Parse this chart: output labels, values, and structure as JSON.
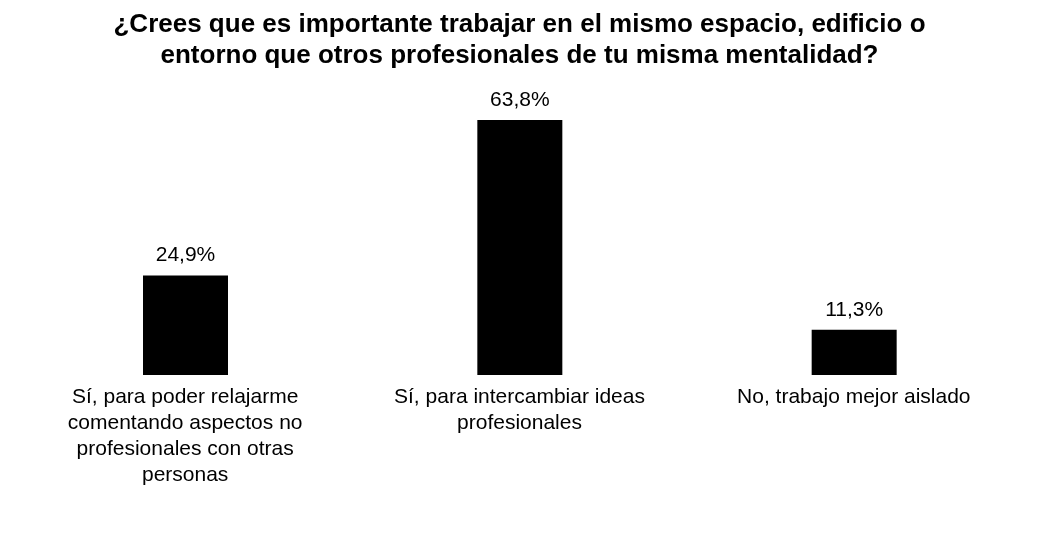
{
  "chart_data": {
    "type": "bar",
    "title": "¿Crees que es importante trabajar en el mismo espacio, edificio o entorno que otros profesionales de tu misma mentalidad?",
    "categories": [
      "Sí, para poder relajarme comentando aspectos no profesionales con otras personas",
      "Sí, para intercambiar ideas profesionales",
      "No, trabajo mejor aislado"
    ],
    "values": [
      24.9,
      63.8,
      11.3
    ],
    "value_labels": [
      "24,9%",
      "63,8%",
      "11,3%"
    ],
    "color": "#000000",
    "grid": false,
    "legend": false
  }
}
